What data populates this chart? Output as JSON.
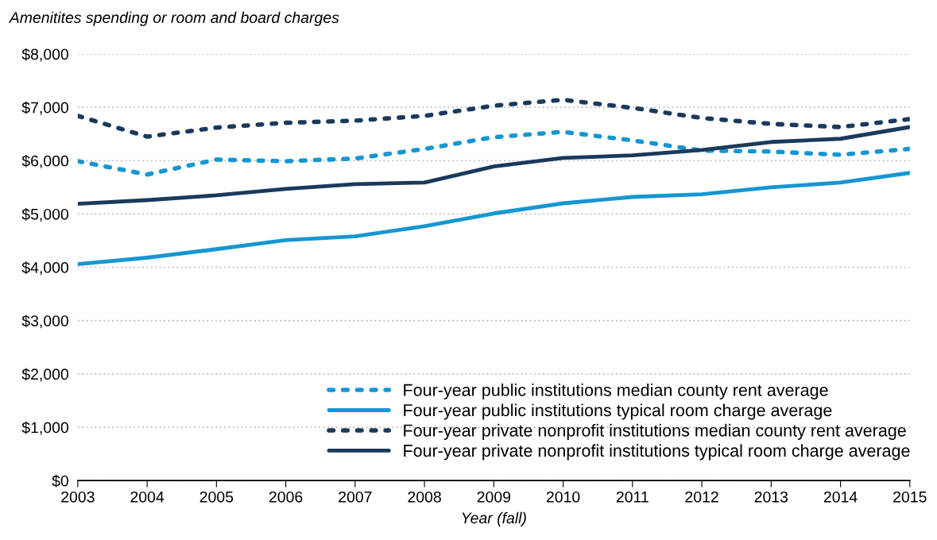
{
  "chart_data": {
    "type": "line",
    "ylabel": "Amenitites spending or room and board charges",
    "xlabel": "Year (fall)",
    "x": [
      2003,
      2004,
      2005,
      2006,
      2007,
      2008,
      2009,
      2010,
      2011,
      2012,
      2013,
      2014,
      2015
    ],
    "series": [
      {
        "name": "Four-year public institutions median county rent average",
        "color": "#1696d2",
        "line_style": "dotted",
        "values": [
          5990,
          5740,
          6020,
          5990,
          6040,
          6220,
          6440,
          6540,
          6380,
          6190,
          6170,
          6110,
          6220
        ]
      },
      {
        "name": "Four-year public institutions typical room charge average",
        "color": "#1696d2",
        "line_style": "solid",
        "values": [
          4060,
          4180,
          4340,
          4510,
          4580,
          4770,
          5010,
          5200,
          5320,
          5370,
          5500,
          5590,
          5770
        ]
      },
      {
        "name": "Four-year private nonprofit institutions median county rent average",
        "color": "#1a3a5c",
        "line_style": "dotted",
        "values": [
          6840,
          6450,
          6620,
          6710,
          6750,
          6840,
          7030,
          7140,
          6990,
          6800,
          6690,
          6630,
          6780
        ]
      },
      {
        "name": "Four-year private nonprofit institutions typical room charge average",
        "color": "#1a3a5c",
        "line_style": "solid",
        "values": [
          5190,
          5260,
          5350,
          5470,
          5560,
          5590,
          5890,
          6050,
          6100,
          6200,
          6350,
          6410,
          6630
        ]
      }
    ],
    "xlim": [
      2003,
      2015
    ],
    "xticks": [
      2003,
      2004,
      2005,
      2006,
      2007,
      2008,
      2009,
      2010,
      2011,
      2012,
      2013,
      2014,
      2015
    ],
    "ylim": [
      0,
      8000
    ],
    "yticks": [
      {
        "value": 0,
        "label": "$0"
      },
      {
        "value": 1000,
        "label": "$1,000"
      },
      {
        "value": 2000,
        "label": "$2,000"
      },
      {
        "value": 3000,
        "label": "$3,000"
      },
      {
        "value": 4000,
        "label": "$4,000"
      },
      {
        "value": 5000,
        "label": "$5,000"
      },
      {
        "value": 6000,
        "label": "$6,000"
      },
      {
        "value": 7000,
        "label": "$7,000"
      },
      {
        "value": 8000,
        "label": "$8,000"
      }
    ],
    "grid": "y",
    "legend": "bottom right",
    "marker": "none"
  }
}
